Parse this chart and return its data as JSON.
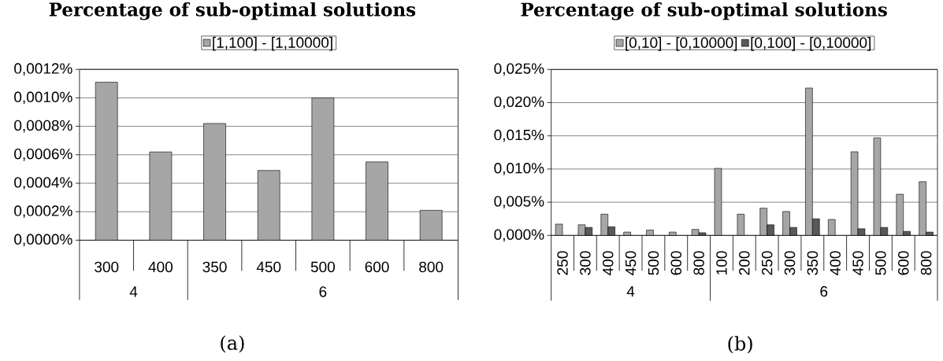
{
  "chart_data": [
    {
      "type": "bar",
      "title": "Percentage of sub-optimal solutions",
      "categories": [
        "300",
        "400",
        "350",
        "450",
        "500",
        "600",
        "800"
      ],
      "series": [
        {
          "name": "[1,100] - [1,10000]",
          "color": "#a6a6a6",
          "values": [
            0.00111,
            0.00062,
            0.00082,
            0.00049,
            0.001,
            0.00055,
            0.00021
          ]
        }
      ],
      "ylim": [
        0,
        0.0012
      ],
      "yticks": [
        {
          "value": 0,
          "label": "0,0000%"
        },
        {
          "value": 0.0002,
          "label": "0,0002%"
        },
        {
          "value": 0.0004,
          "label": "0,0004%"
        },
        {
          "value": 0.0006,
          "label": "0,0006%"
        },
        {
          "value": 0.0008,
          "label": "0,0008%"
        },
        {
          "value": 0.001,
          "label": "0,0010%"
        },
        {
          "value": 0.0012,
          "label": "0,0012%"
        }
      ],
      "grid": "y",
      "legend": "top",
      "annotations": [
        "4",
        "6",
        "(a)"
      ]
    },
    {
      "type": "bar",
      "title": "Percentage of sub-optimal solutions",
      "categories": [
        "250",
        "300",
        "400",
        "450",
        "500",
        "600",
        "800",
        "100",
        "200",
        "250",
        "300",
        "350",
        "400",
        "450",
        "500",
        "600",
        "800"
      ],
      "series": [
        {
          "name": "[0,10] - [0,10000]",
          "color": "#a6a6a6",
          "values": [
            0.0017,
            0.0016,
            0.0032,
            0.0005,
            0.0008,
            0.0005,
            0.0009,
            0.0101,
            0.0032,
            0.0041,
            0.0036,
            0.0222,
            0.0024,
            0.0126,
            0.0147,
            0.0062,
            0.0081
          ]
        },
        {
          "name": "[0,100] - [0,10000]",
          "color": "#595959",
          "values": [
            null,
            0.0012,
            0.0013,
            null,
            null,
            null,
            0.0004,
            null,
            null,
            0.0016,
            0.0012,
            0.0025,
            null,
            0.001,
            0.0012,
            0.0006,
            0.0005
          ]
        }
      ],
      "ylim": [
        0,
        0.025
      ],
      "yticks": [
        {
          "value": 0,
          "label": "0,000%"
        },
        {
          "value": 0.005,
          "label": "0,005%"
        },
        {
          "value": 0.01,
          "label": "0,010%"
        },
        {
          "value": 0.015,
          "label": "0,015%"
        },
        {
          "value": 0.02,
          "label": "0,020%"
        },
        {
          "value": 0.025,
          "label": "0,025%"
        }
      ],
      "grid": "y",
      "legend": "top",
      "annotations": [
        "4",
        "6",
        "(b)"
      ]
    }
  ]
}
